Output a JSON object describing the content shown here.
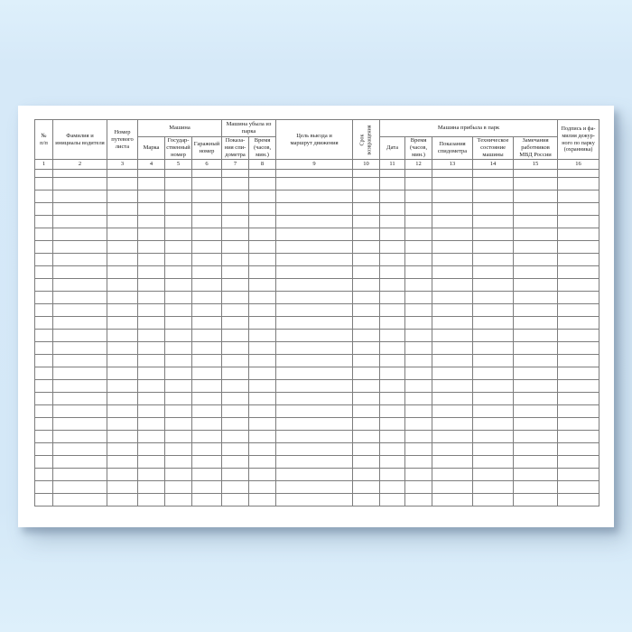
{
  "document": {
    "background_color": "#d4e8f7",
    "paper_color": "#ffffff",
    "table_border_color": "#7d7d7d",
    "text_color": "#1c1c1c"
  },
  "table": {
    "groups": [
      "Машина",
      "Машина убыла из\nпарка",
      "Машина прибыла в парк"
    ],
    "columns": [
      {
        "num": "1",
        "label": "№\nп/п"
      },
      {
        "num": "2",
        "label": "Фамилия и\nинициалы водителя"
      },
      {
        "num": "3",
        "label": "Номер\nпутевого\nлиста"
      },
      {
        "num": "4",
        "label": "Марка"
      },
      {
        "num": "5",
        "label": "Государ-\nственный\nномер"
      },
      {
        "num": "6",
        "label": "Гаражный\nномер"
      },
      {
        "num": "7",
        "label": "Показа-\nния спи-\nдометра"
      },
      {
        "num": "8",
        "label": "Время\n(часов,\nмин.)"
      },
      {
        "num": "9",
        "label": "Цель выезда и\nмаршрут движения"
      },
      {
        "num": "10",
        "label": "Срок\nвозвращения"
      },
      {
        "num": "11",
        "label": "Дата"
      },
      {
        "num": "12",
        "label": "Время\n(часов,\nмин.)"
      },
      {
        "num": "13",
        "label": "Показания\nспидометра"
      },
      {
        "num": "14",
        "label": "Техническое\nсостояние\nмашины"
      },
      {
        "num": "15",
        "label": "Замечания\nработников\nМВД России"
      },
      {
        "num": "16",
        "label": "Подпись и фа-\nмилия дежур-\nного по парку\n(охранника)"
      }
    ],
    "column_count": 16,
    "empty_row_count": 27
  }
}
